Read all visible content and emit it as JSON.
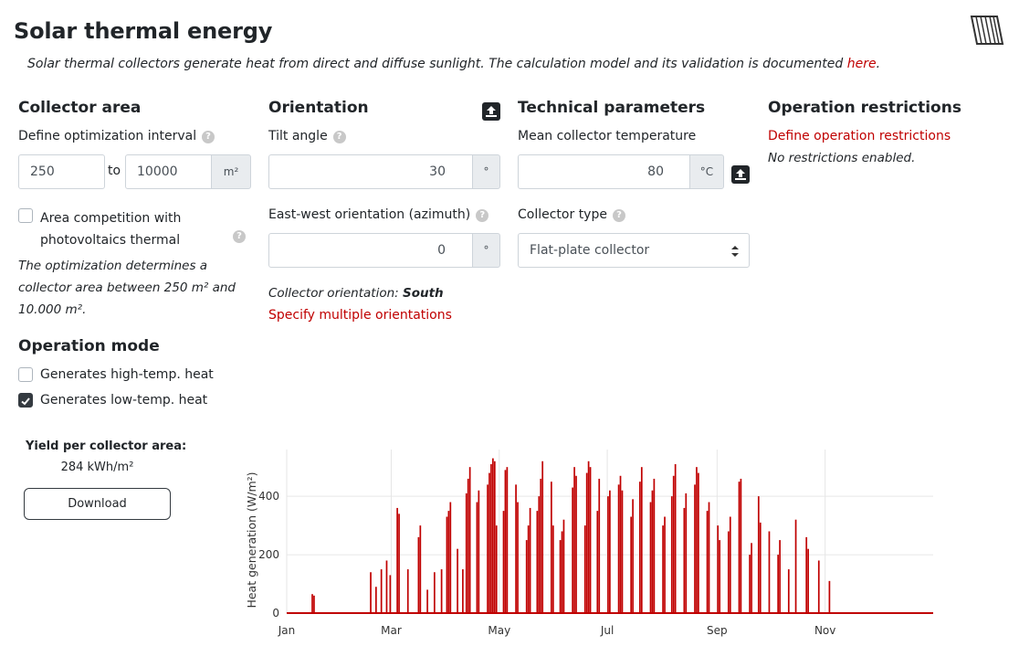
{
  "page": {
    "title": "Solar thermal energy",
    "subtitle": "Solar thermal collectors generate heat from direct and diffuse sunlight. The calculation model and its validation is documented ",
    "subtitle_link": "here",
    "subtitle_end": "."
  },
  "collector_area": {
    "heading": "Collector area",
    "interval_label": "Define optimization interval",
    "min_value": "250",
    "to_label": "to",
    "max_value": "10000",
    "unit": "m²",
    "competition_label_1": "Area competition with",
    "competition_label_2": "photovoltaics thermal",
    "competition_checked": false,
    "note_1": "The optimization determines a",
    "note_2": "collector area between 250 m² and",
    "note_3": "10.000 m²."
  },
  "operation_mode": {
    "heading": "Operation mode",
    "high_temp_label": "Generates high-temp. heat",
    "high_temp_checked": false,
    "low_temp_label": "Generates low-temp. heat",
    "low_temp_checked": true
  },
  "orientation": {
    "heading": "Orientation",
    "tilt_label": "Tilt angle",
    "tilt_value": "30",
    "tilt_unit": "°",
    "azimuth_label": "East-west orientation (azimuth)",
    "azimuth_value": "0",
    "azimuth_unit": "°",
    "summary_prefix": "Collector orientation: ",
    "summary_value": "South",
    "multiple_link": "Specify multiple orientations"
  },
  "technical": {
    "heading": "Technical parameters",
    "temp_label": "Mean collector temperature",
    "temp_value": "80",
    "temp_unit": "°C",
    "type_label": "Collector type",
    "type_value": "Flat-plate collector"
  },
  "restrictions": {
    "heading": "Operation restrictions",
    "define_link": "Define operation restrictions",
    "status": "No restrictions enabled."
  },
  "yield": {
    "label": "Yield per collector area:",
    "value": "284 kWh/m²",
    "download_label": "Download"
  },
  "colors": {
    "accent": "#c00000",
    "bar": "#c00000",
    "grid": "#e6e6e6"
  },
  "chart_data": {
    "type": "bar",
    "ylabel": "Heat generation (W/m²)",
    "ylim": [
      0,
      560
    ],
    "yticks": [
      0,
      200,
      400
    ],
    "xtick_labels": [
      "Jan",
      "Mar",
      "May",
      "Jul",
      "Sep",
      "Nov"
    ],
    "xtick_days": [
      1,
      60,
      121,
      182,
      244,
      305
    ],
    "x_domain": [
      1,
      366
    ],
    "grid": true,
    "series": [
      {
        "values": [
          0,
          0,
          0,
          0,
          0,
          0,
          0,
          0,
          0,
          0,
          0,
          0,
          0,
          0,
          65,
          60,
          0,
          0,
          0,
          0,
          0,
          0,
          0,
          0,
          0,
          0,
          0,
          0,
          0,
          0,
          0,
          0,
          0,
          0,
          0,
          0,
          0,
          0,
          0,
          0,
          0,
          0,
          0,
          0,
          0,
          0,
          0,
          140,
          0,
          0,
          90,
          0,
          0,
          150,
          0,
          0,
          180,
          0,
          130,
          0,
          0,
          0,
          360,
          340,
          0,
          0,
          0,
          0,
          150,
          0,
          0,
          0,
          0,
          0,
          260,
          300,
          0,
          0,
          0,
          80,
          0,
          0,
          0,
          140,
          0,
          0,
          0,
          150,
          0,
          0,
          330,
          350,
          380,
          0,
          0,
          0,
          220,
          0,
          0,
          150,
          0,
          410,
          460,
          500,
          0,
          0,
          0,
          380,
          420,
          0,
          0,
          0,
          0,
          440,
          480,
          510,
          530,
          520,
          300,
          0,
          0,
          0,
          350,
          490,
          500,
          0,
          0,
          0,
          0,
          440,
          380,
          0,
          0,
          0,
          0,
          250,
          300,
          360,
          0,
          0,
          0,
          350,
          400,
          460,
          520,
          0,
          0,
          0,
          0,
          450,
          300,
          0,
          0,
          0,
          250,
          280,
          320,
          0,
          0,
          0,
          0,
          430,
          500,
          470,
          0,
          0,
          0,
          0,
          300,
          480,
          520,
          500,
          0,
          0,
          0,
          350,
          460,
          0,
          0,
          0,
          0,
          400,
          420,
          0,
          0,
          0,
          0,
          440,
          470,
          420,
          0,
          0,
          0,
          0,
          330,
          390,
          0,
          0,
          0,
          450,
          500,
          0,
          0,
          0,
          0,
          380,
          420,
          460,
          0,
          0,
          0,
          0,
          300,
          330,
          0,
          0,
          0,
          400,
          470,
          510,
          0,
          0,
          0,
          0,
          360,
          410,
          0,
          0,
          0,
          0,
          440,
          500,
          480,
          0,
          0,
          0,
          0,
          350,
          380,
          0,
          0,
          0,
          0,
          300,
          250,
          0,
          0,
          0,
          0,
          280,
          330,
          0,
          0,
          0,
          0,
          450,
          460,
          0,
          0,
          0,
          0,
          200,
          240,
          0,
          0,
          0,
          400,
          310,
          0,
          0,
          0,
          0,
          280,
          0,
          0,
          0,
          0,
          200,
          250,
          0,
          0,
          0,
          0,
          150,
          0,
          0,
          0,
          320,
          0,
          0,
          0,
          0,
          0,
          260,
          220,
          0,
          0,
          0,
          0,
          0,
          180,
          0,
          0,
          0,
          0,
          0,
          110,
          0,
          0,
          0,
          0,
          0,
          0,
          0,
          0,
          0,
          0,
          0,
          0,
          0,
          0,
          0,
          0,
          0,
          0,
          0,
          0,
          0,
          0,
          0,
          0,
          0,
          0,
          0,
          0,
          0,
          0,
          0,
          0,
          0,
          0,
          0,
          0,
          0,
          0,
          0,
          0,
          0,
          0,
          0,
          0,
          0,
          0,
          0,
          0,
          0,
          0,
          0,
          0,
          0,
          0,
          0,
          0,
          0,
          0,
          0,
          0,
          0,
          0,
          0,
          0,
          0,
          0
        ]
      }
    ]
  }
}
